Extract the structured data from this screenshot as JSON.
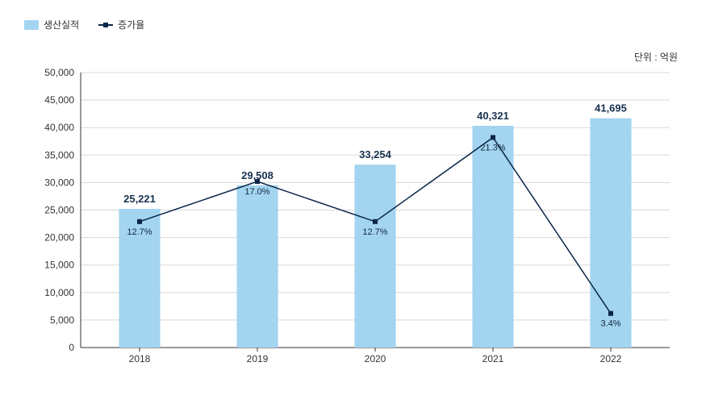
{
  "legend": {
    "bar_label": "생산실적",
    "line_label": "증가율"
  },
  "unit_text": "단위 : 억원",
  "chart": {
    "type": "bar+line",
    "categories": [
      "2018",
      "2019",
      "2020",
      "2021",
      "2022"
    ],
    "bar_values": [
      25221,
      29508,
      33254,
      40321,
      41695
    ],
    "bar_value_labels": [
      "25,221",
      "29,508",
      "33,254",
      "40,321",
      "41,695"
    ],
    "line_pct_values": [
      12.7,
      17.0,
      12.7,
      21.3,
      3.4
    ],
    "line_pct_labels": [
      "12.7%",
      "17.0%",
      "12.7%",
      "21.3%",
      "3.4%"
    ],
    "line_y_values": [
      22900,
      30200,
      22900,
      38200,
      6200
    ],
    "ylim": [
      0,
      50000
    ],
    "ytick_step": 5000,
    "ytick_labels": [
      "0",
      "5,000",
      "10,000",
      "15,000",
      "20,000",
      "25,000",
      "30,000",
      "35,000",
      "40,000",
      "45,000",
      "50,000"
    ],
    "bar_color": "#a3d4f0",
    "line_color": "#0a2648",
    "marker_color": "#0a2648",
    "marker_size": 6,
    "line_width": 1.5,
    "grid_color": "#d8d8d8",
    "axis_color": "#333333",
    "background_color": "#ffffff",
    "bar_label_color": "#18324f",
    "pct_label_color": "#12273e",
    "bar_width_ratio": 0.35,
    "bar_label_fontsize": 13,
    "pct_label_fontsize": 11,
    "tick_fontsize": 12
  }
}
